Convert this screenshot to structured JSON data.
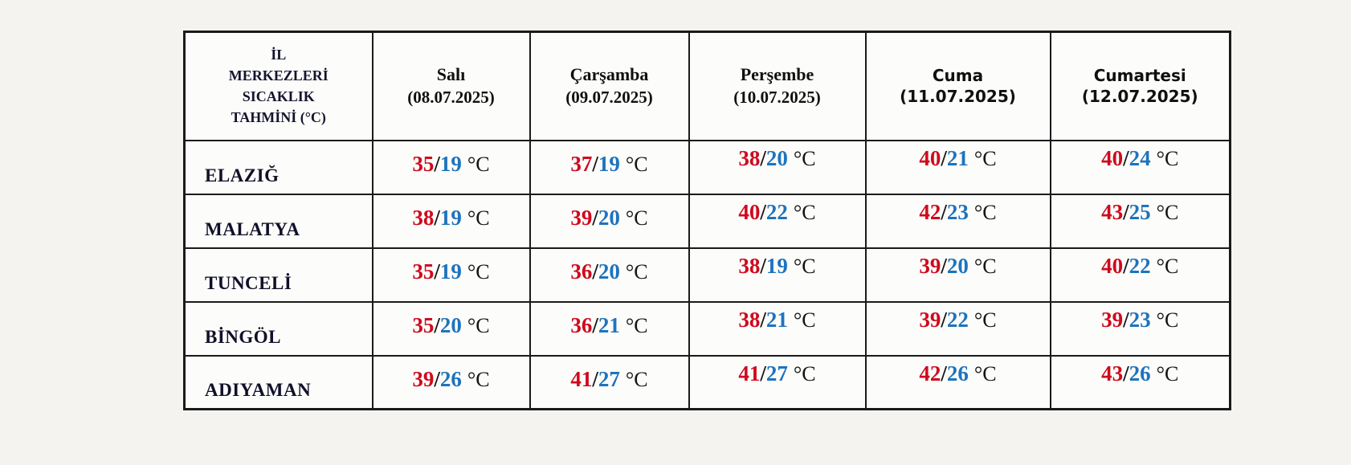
{
  "page": {
    "background": "#f4f3f0"
  },
  "colors": {
    "high_temp": "#cf0a1e",
    "low_temp": "#1e73be",
    "border": "#1a1a1a",
    "cell_background": "#fcfcfa"
  },
  "table": {
    "corner": {
      "lines": [
        "İL",
        "MERKEZLERİ",
        "SICAKLIK",
        "TAHMİNİ (°C)"
      ]
    },
    "separator": "/",
    "unit": "°C",
    "day_headers": [
      {
        "day": "Salı",
        "date": "(08.07.2025)",
        "style": "serif"
      },
      {
        "day": "Çarşamba",
        "date": "(09.07.2025)",
        "style": "serif"
      },
      {
        "day": "Perşembe",
        "date": "(10.07.2025)",
        "style": "serif"
      },
      {
        "day": "Cuma",
        "date": "(11.07.2025)",
        "style": "sans"
      },
      {
        "day": "Cumartesi",
        "date": "(12.07.2025)",
        "style": "sans"
      }
    ],
    "rows": [
      {
        "city": "ELAZIĞ",
        "temps": [
          [
            "35",
            "19"
          ],
          [
            "37",
            "19"
          ],
          [
            "38",
            "20"
          ],
          [
            "40",
            "21"
          ],
          [
            "40",
            "24"
          ]
        ]
      },
      {
        "city": "MALATYA",
        "temps": [
          [
            "38",
            "19"
          ],
          [
            "39",
            "20"
          ],
          [
            "40",
            "22"
          ],
          [
            "42",
            "23"
          ],
          [
            "43",
            "25"
          ]
        ]
      },
      {
        "city": "TUNCELİ",
        "temps": [
          [
            "35",
            "19"
          ],
          [
            "36",
            "20"
          ],
          [
            "38",
            "19"
          ],
          [
            "39",
            "20"
          ],
          [
            "40",
            "22"
          ]
        ]
      },
      {
        "city": "BİNGÖL",
        "temps": [
          [
            "35",
            "20"
          ],
          [
            "36",
            "21"
          ],
          [
            "38",
            "21"
          ],
          [
            "39",
            "22"
          ],
          [
            "39",
            "23"
          ]
        ]
      },
      {
        "city": "ADIYAMAN",
        "temps": [
          [
            "39",
            "26"
          ],
          [
            "41",
            "27"
          ],
          [
            "41",
            "27"
          ],
          [
            "42",
            "26"
          ],
          [
            "43",
            "26"
          ]
        ]
      }
    ]
  },
  "chart_data": {
    "type": "table",
    "title": "İL MERKEZLERİ SICAKLIK TAHMİNİ (°C)",
    "columns": [
      "Salı (08.07.2025)",
      "Çarşamba (09.07.2025)",
      "Perşembe (10.07.2025)",
      "Cuma (11.07.2025)",
      "Cumartesi (12.07.2025)"
    ],
    "series": [
      {
        "name": "ELAZIĞ",
        "high": [
          35,
          37,
          38,
          40,
          40
        ],
        "low": [
          19,
          19,
          20,
          21,
          24
        ]
      },
      {
        "name": "MALATYA",
        "high": [
          38,
          39,
          40,
          42,
          43
        ],
        "low": [
          19,
          20,
          22,
          23,
          25
        ]
      },
      {
        "name": "TUNCELİ",
        "high": [
          35,
          36,
          38,
          39,
          40
        ],
        "low": [
          19,
          20,
          19,
          20,
          22
        ]
      },
      {
        "name": "BİNGÖL",
        "high": [
          35,
          36,
          38,
          39,
          39
        ],
        "low": [
          20,
          21,
          21,
          22,
          23
        ]
      },
      {
        "name": "ADIYAMAN",
        "high": [
          39,
          41,
          41,
          42,
          43
        ],
        "low": [
          26,
          27,
          27,
          26,
          26
        ]
      }
    ]
  }
}
